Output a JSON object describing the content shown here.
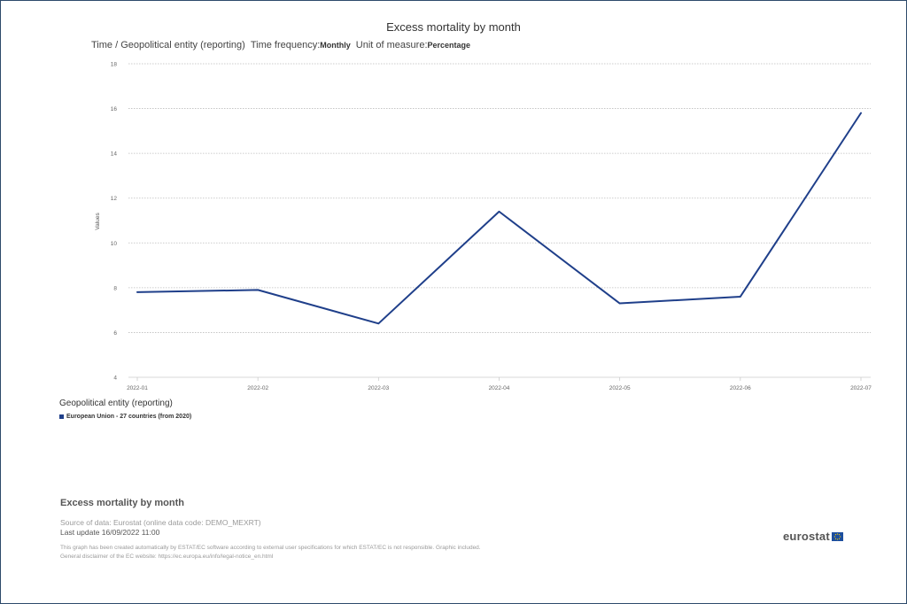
{
  "title": "Excess mortality by month",
  "subtitle": {
    "dimensions": "Time / Geopolitical entity (reporting)",
    "frequency_label": "Time frequency:",
    "frequency_value": "Monthly",
    "unit_label": "Unit of measure:",
    "unit_value": "Percentage"
  },
  "legend": {
    "title": "Geopolitical entity (reporting)",
    "item": "European Union - 27 countries (from 2020)"
  },
  "footer": {
    "title": "Excess mortality by month",
    "source": "Source of data: Eurostat (online data code: DEMO_MEXRT)",
    "last_update": "Last update 16/09/2022 11:00",
    "disclaimer_1": "This graph has been created automatically by ESTAT/EC software according to external user specifications for which ESTAT/EC is not responsible. Graphic included.",
    "disclaimer_2": "General disclaimer of the EC website: https://ec.europa.eu/info/legal-notice_en.html",
    "logo_text": "eurostat"
  },
  "chart_data": {
    "type": "line",
    "title": "Excess mortality by month",
    "x": [
      "2022-01",
      "2022-02",
      "2022-03",
      "2022-04",
      "2022-05",
      "2022-06",
      "2022-07"
    ],
    "series": [
      {
        "name": "European Union - 27 countries (from 2020)",
        "values": [
          7.8,
          7.9,
          6.4,
          11.4,
          7.3,
          7.6,
          15.8
        ],
        "color": "#1f3f8a"
      }
    ],
    "ylabel": "Values",
    "ylim": [
      4,
      18
    ],
    "yticks": [
      4,
      6,
      8,
      10,
      12,
      14,
      16,
      18
    ],
    "grid": true,
    "legend_position": "bottom-left"
  }
}
